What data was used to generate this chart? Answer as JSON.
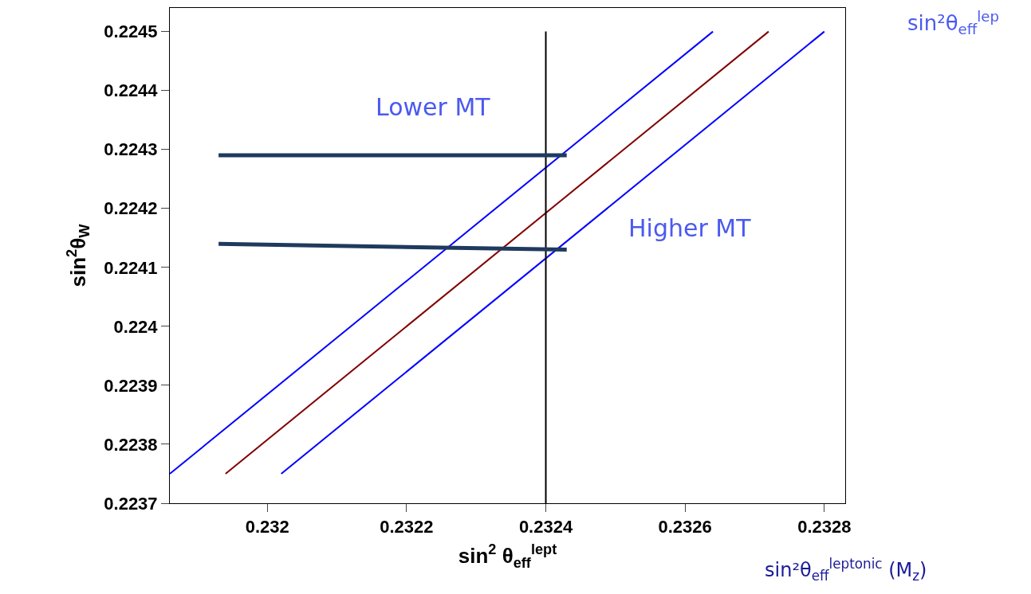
{
  "chart_data": {
    "type": "line",
    "xlabel": "sin$^{2}$ θ$_{eff}$$^{lept}$",
    "ylabel": "sin$^{2}$θ$_{W}$",
    "xlim": [
      0.23186,
      0.23283
    ],
    "ylim": [
      0.2237,
      0.22454
    ],
    "xticks": [
      0.232,
      0.2322,
      0.2324,
      0.2326,
      0.2328
    ],
    "yticks": [
      0.2237,
      0.2238,
      0.2239,
      0.224,
      0.2241,
      0.2242,
      0.2243,
      0.2244,
      0.2245
    ],
    "series": [
      {
        "color": "#0000ff",
        "x": [
          0.23186,
          0.23264
        ],
        "values": [
          0.22375,
          0.2245
        ]
      },
      {
        "color": "#800000",
        "x": [
          0.23194,
          0.23272
        ],
        "values": [
          0.22375,
          0.2245
        ]
      },
      {
        "color": "#0000ff",
        "x": [
          0.23202,
          0.2328
        ],
        "values": [
          0.22375,
          0.2245
        ]
      },
      {
        "color": "#000000",
        "x": [
          0.2324,
          0.2324
        ],
        "values": [
          0.2237,
          0.2245
        ]
      },
      {
        "color": "#1f3a5f",
        "x": [
          0.23193,
          0.23243
        ],
        "values": [
          0.22429,
          0.22429
        ]
      },
      {
        "color": "#1f3a5f",
        "x": [
          0.23193,
          0.23243
        ],
        "values": [
          0.22414,
          0.22413
        ]
      }
    ],
    "annotations": [
      "Lower MT",
      "Higher MT",
      "sin²θ$_{eff}$$^{lep}$",
      "sin²θ$_{eff}$$^{leptonic}$ (M$_{z}$)"
    ],
    "marker": "none",
    "line_style": "solid"
  }
}
